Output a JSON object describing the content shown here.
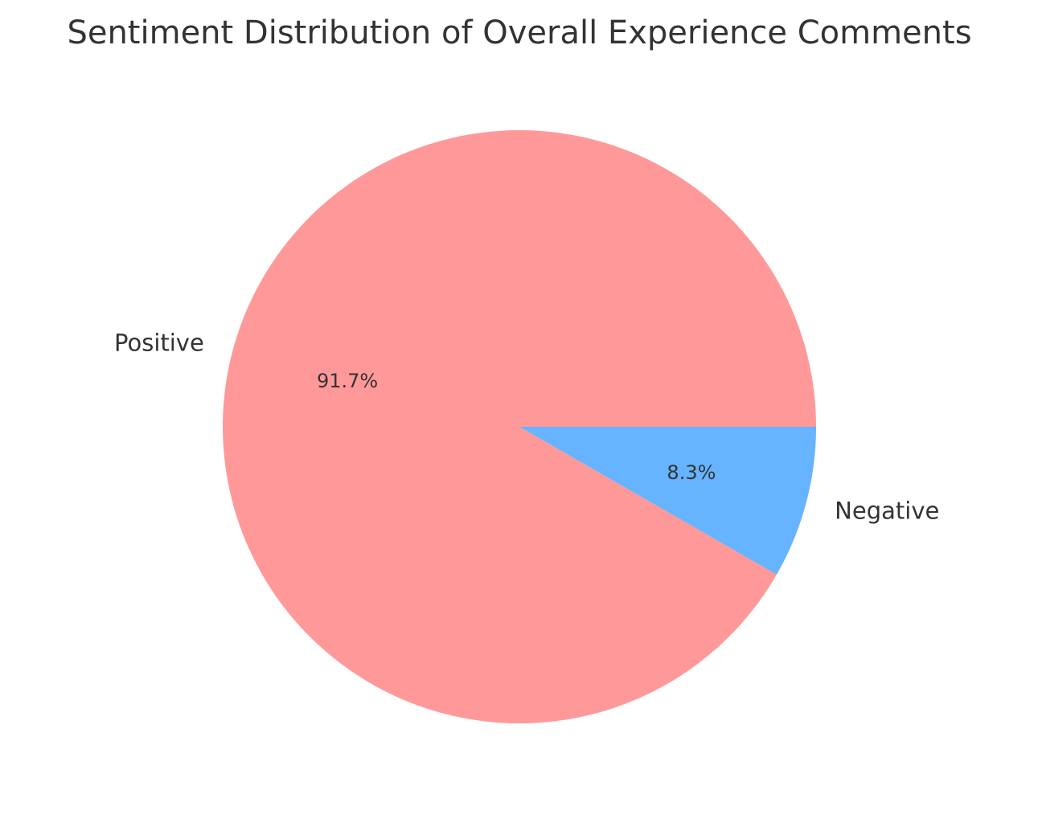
{
  "chart_data": {
    "type": "pie",
    "title": "Sentiment Distribution of Overall Experience Comments",
    "slices": [
      {
        "label": "Positive",
        "value": 91.7,
        "display": "91.7%",
        "color": "#ff9999"
      },
      {
        "label": "Negative",
        "value": 8.3,
        "display": "8.3%",
        "color": "#66b3ff"
      }
    ],
    "start_angle_deg": 0,
    "direction": "counterclockwise"
  }
}
